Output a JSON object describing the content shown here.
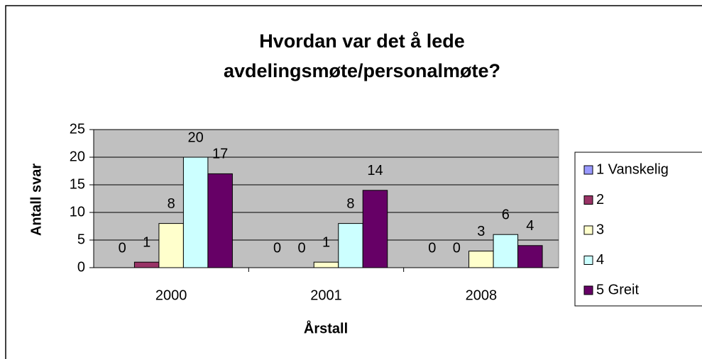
{
  "chart_data": {
    "type": "bar",
    "title": [
      "Hvordan var det å lede",
      "avdelingsmøte/personalmøte?"
    ],
    "x_label": "Årstall",
    "y_label": "Antall svar",
    "categories": [
      "2000",
      "2001",
      "2008"
    ],
    "series": [
      {
        "name": "1 Vanskelig",
        "color": "#9999ff",
        "values": [
          0,
          0,
          0
        ]
      },
      {
        "name": "2",
        "color": "#993366",
        "values": [
          1,
          0,
          0
        ]
      },
      {
        "name": "3",
        "color": "#ffffcc",
        "values": [
          8,
          1,
          3
        ]
      },
      {
        "name": "4",
        "color": "#ccffff",
        "values": [
          20,
          8,
          6
        ]
      },
      {
        "name": "5 Greit",
        "color": "#660066",
        "values": [
          17,
          14,
          4
        ]
      }
    ],
    "ylim": [
      0,
      25
    ],
    "yticks": [
      0,
      5,
      10,
      15,
      20,
      25
    ],
    "grid": true,
    "legend": "right"
  }
}
